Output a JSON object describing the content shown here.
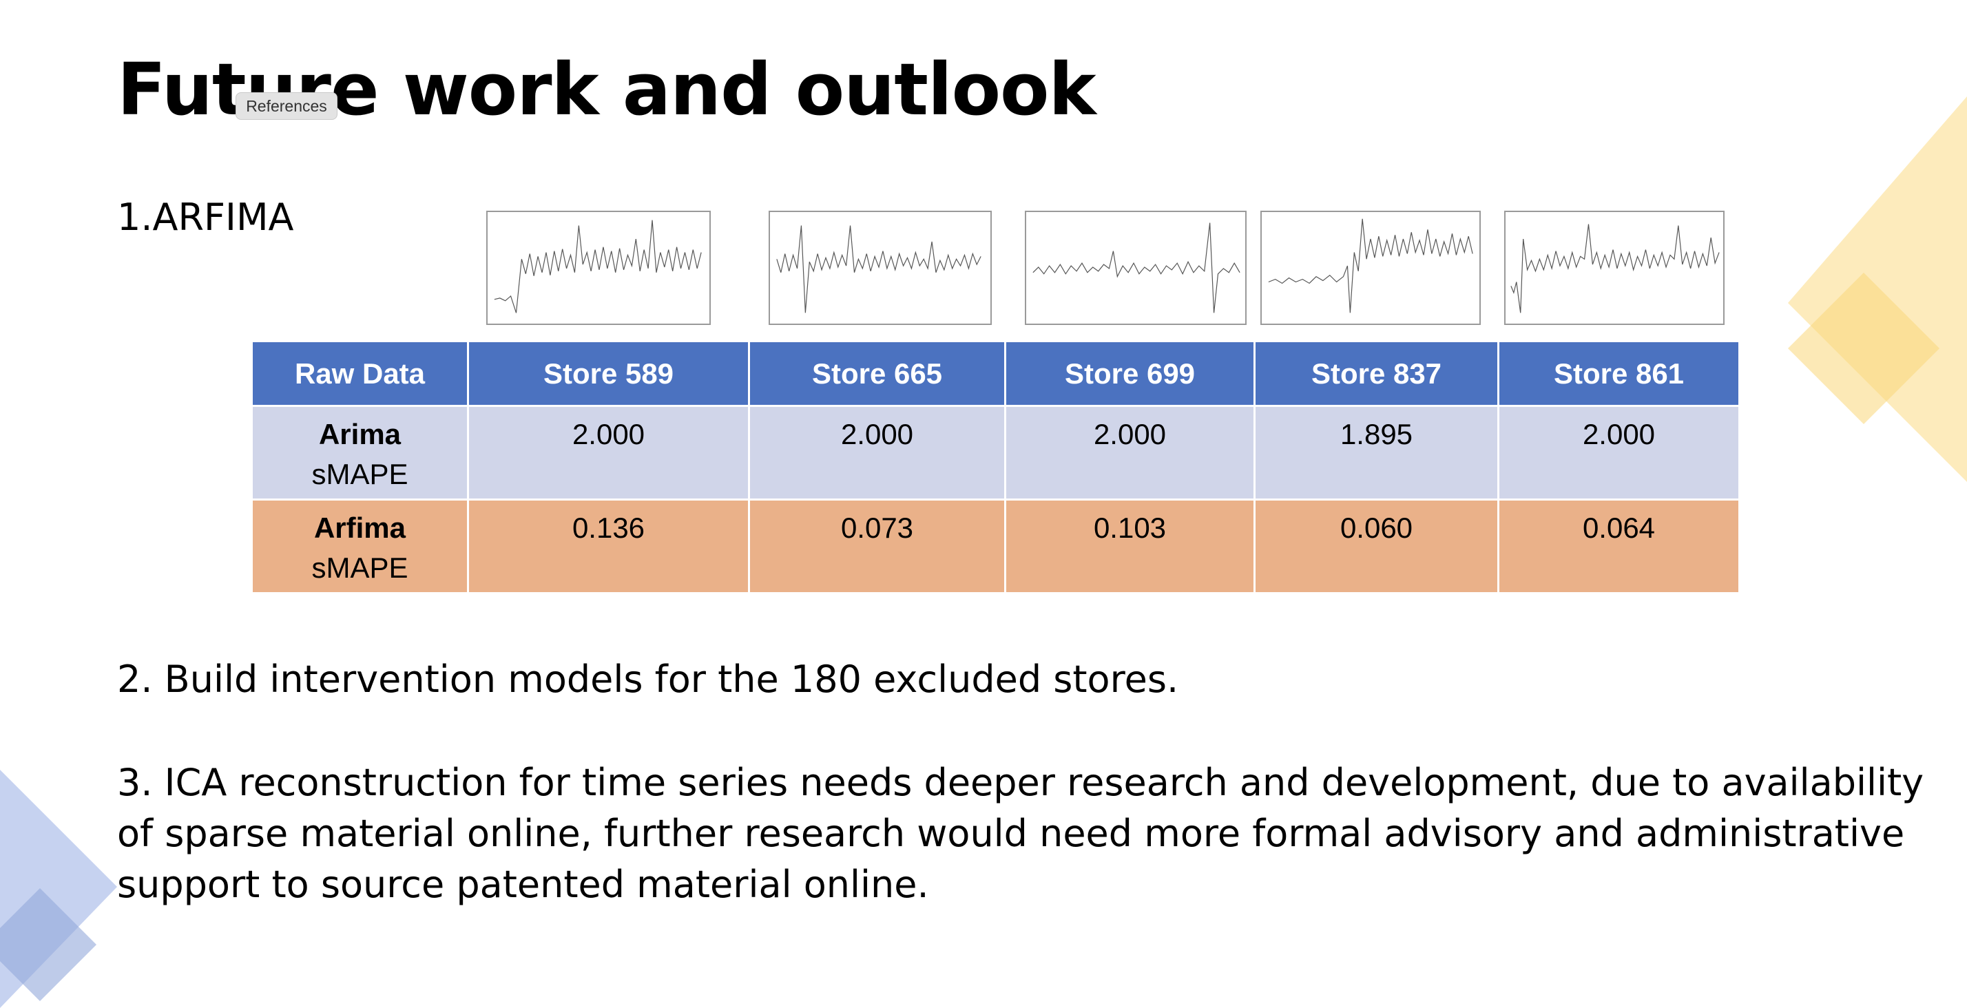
{
  "slide": {
    "title": "Future work and outlook",
    "tooltip": "References",
    "section1_label": "1.ARFIMA",
    "point2": "2. Build intervention models for the 180 excluded stores.",
    "point3": "3. ICA reconstruction for time series needs deeper research and development, due to availability of sparse material online, further research would need more formal advisory and administrative support to source patented material online."
  },
  "table": {
    "header_label": "Raw Data",
    "columns": [
      "Store 589",
      "Store 665",
      "Store 699",
      "Store 837",
      "Store 861"
    ],
    "rows": [
      {
        "model": "Arima",
        "metric": "sMAPE",
        "values": [
          "2.000",
          "2.000",
          "2.000",
          "1.895",
          "2.000"
        ]
      },
      {
        "model": "Arfima",
        "metric": "sMAPE",
        "values": [
          "0.136",
          "0.073",
          "0.103",
          "0.060",
          "0.064"
        ]
      }
    ]
  },
  "colors": {
    "header_bg": "#4b72c0",
    "arima_row_bg": "#d0d5e9",
    "arfima_row_bg": "#eab189",
    "deco_yellow": "#fbe3a0",
    "deco_blue": "#a9b9e3"
  }
}
